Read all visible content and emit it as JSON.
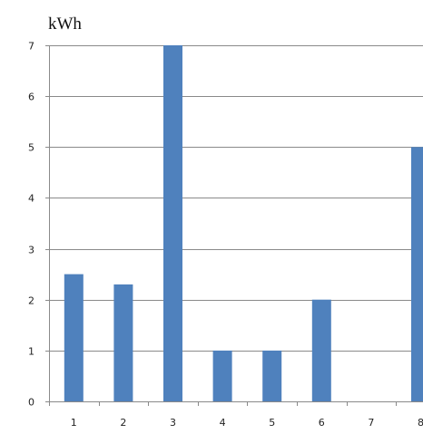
{
  "chart_data": {
    "type": "bar",
    "ylabel": "kWh",
    "categories": [
      "1",
      "2",
      "3",
      "4",
      "5",
      "6",
      "7",
      "8"
    ],
    "values": [
      2.5,
      2.3,
      7,
      1,
      1,
      2,
      0,
      5
    ],
    "ylim": [
      0,
      7
    ],
    "yticks": [
      "0",
      "1",
      "2",
      "3",
      "4",
      "5",
      "6",
      "7"
    ],
    "grid": true,
    "legend": "none",
    "bar_color": "#4f81bd"
  }
}
